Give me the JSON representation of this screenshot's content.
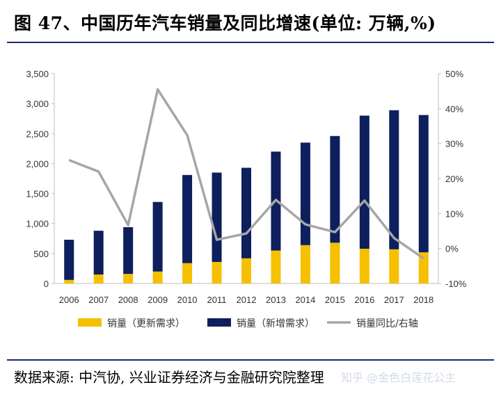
{
  "title": "图 47、中国历年汽车销量及同比增速(单位: 万辆,%)",
  "source": "数据来源: 中汽协, 兴业证券经济与金融研究院整理",
  "watermark": "知乎 @金色白莲花公主",
  "chart_data": {
    "type": "bar",
    "categories": [
      "2006",
      "2007",
      "2008",
      "2009",
      "2010",
      "2011",
      "2012",
      "2013",
      "2014",
      "2015",
      "2016",
      "2017",
      "2018"
    ],
    "series": [
      {
        "name": "销量（更新需求）",
        "kind": "bar",
        "color": "#f5c000",
        "values": [
          60,
          150,
          160,
          200,
          340,
          360,
          420,
          550,
          640,
          680,
          580,
          570,
          520
        ]
      },
      {
        "name": "销量（新增需求）",
        "kind": "bar",
        "color": "#0d1f5c",
        "values": [
          670,
          730,
          780,
          1160,
          1470,
          1490,
          1510,
          1650,
          1710,
          1780,
          2220,
          2320,
          2290
        ]
      },
      {
        "name": "销量同比/右轴",
        "kind": "line",
        "axis": "right",
        "color": "#a6a6a6",
        "values": [
          25.3,
          22.0,
          6.7,
          45.5,
          32.4,
          2.5,
          4.3,
          13.9,
          6.9,
          4.7,
          13.7,
          3.0,
          -2.8
        ]
      }
    ],
    "yleft": {
      "ylim": [
        0,
        3500
      ],
      "ticks": [
        "0",
        "500",
        "1,000",
        "1,500",
        "2,000",
        "2,500",
        "3,000",
        "3,500"
      ]
    },
    "yright": {
      "ylim": [
        -10,
        50
      ],
      "ticks": [
        "-10%",
        "0%",
        "10%",
        "20%",
        "30%",
        "40%",
        "50%"
      ]
    },
    "stacked": true,
    "grid": false,
    "legend_position": "bottom"
  }
}
